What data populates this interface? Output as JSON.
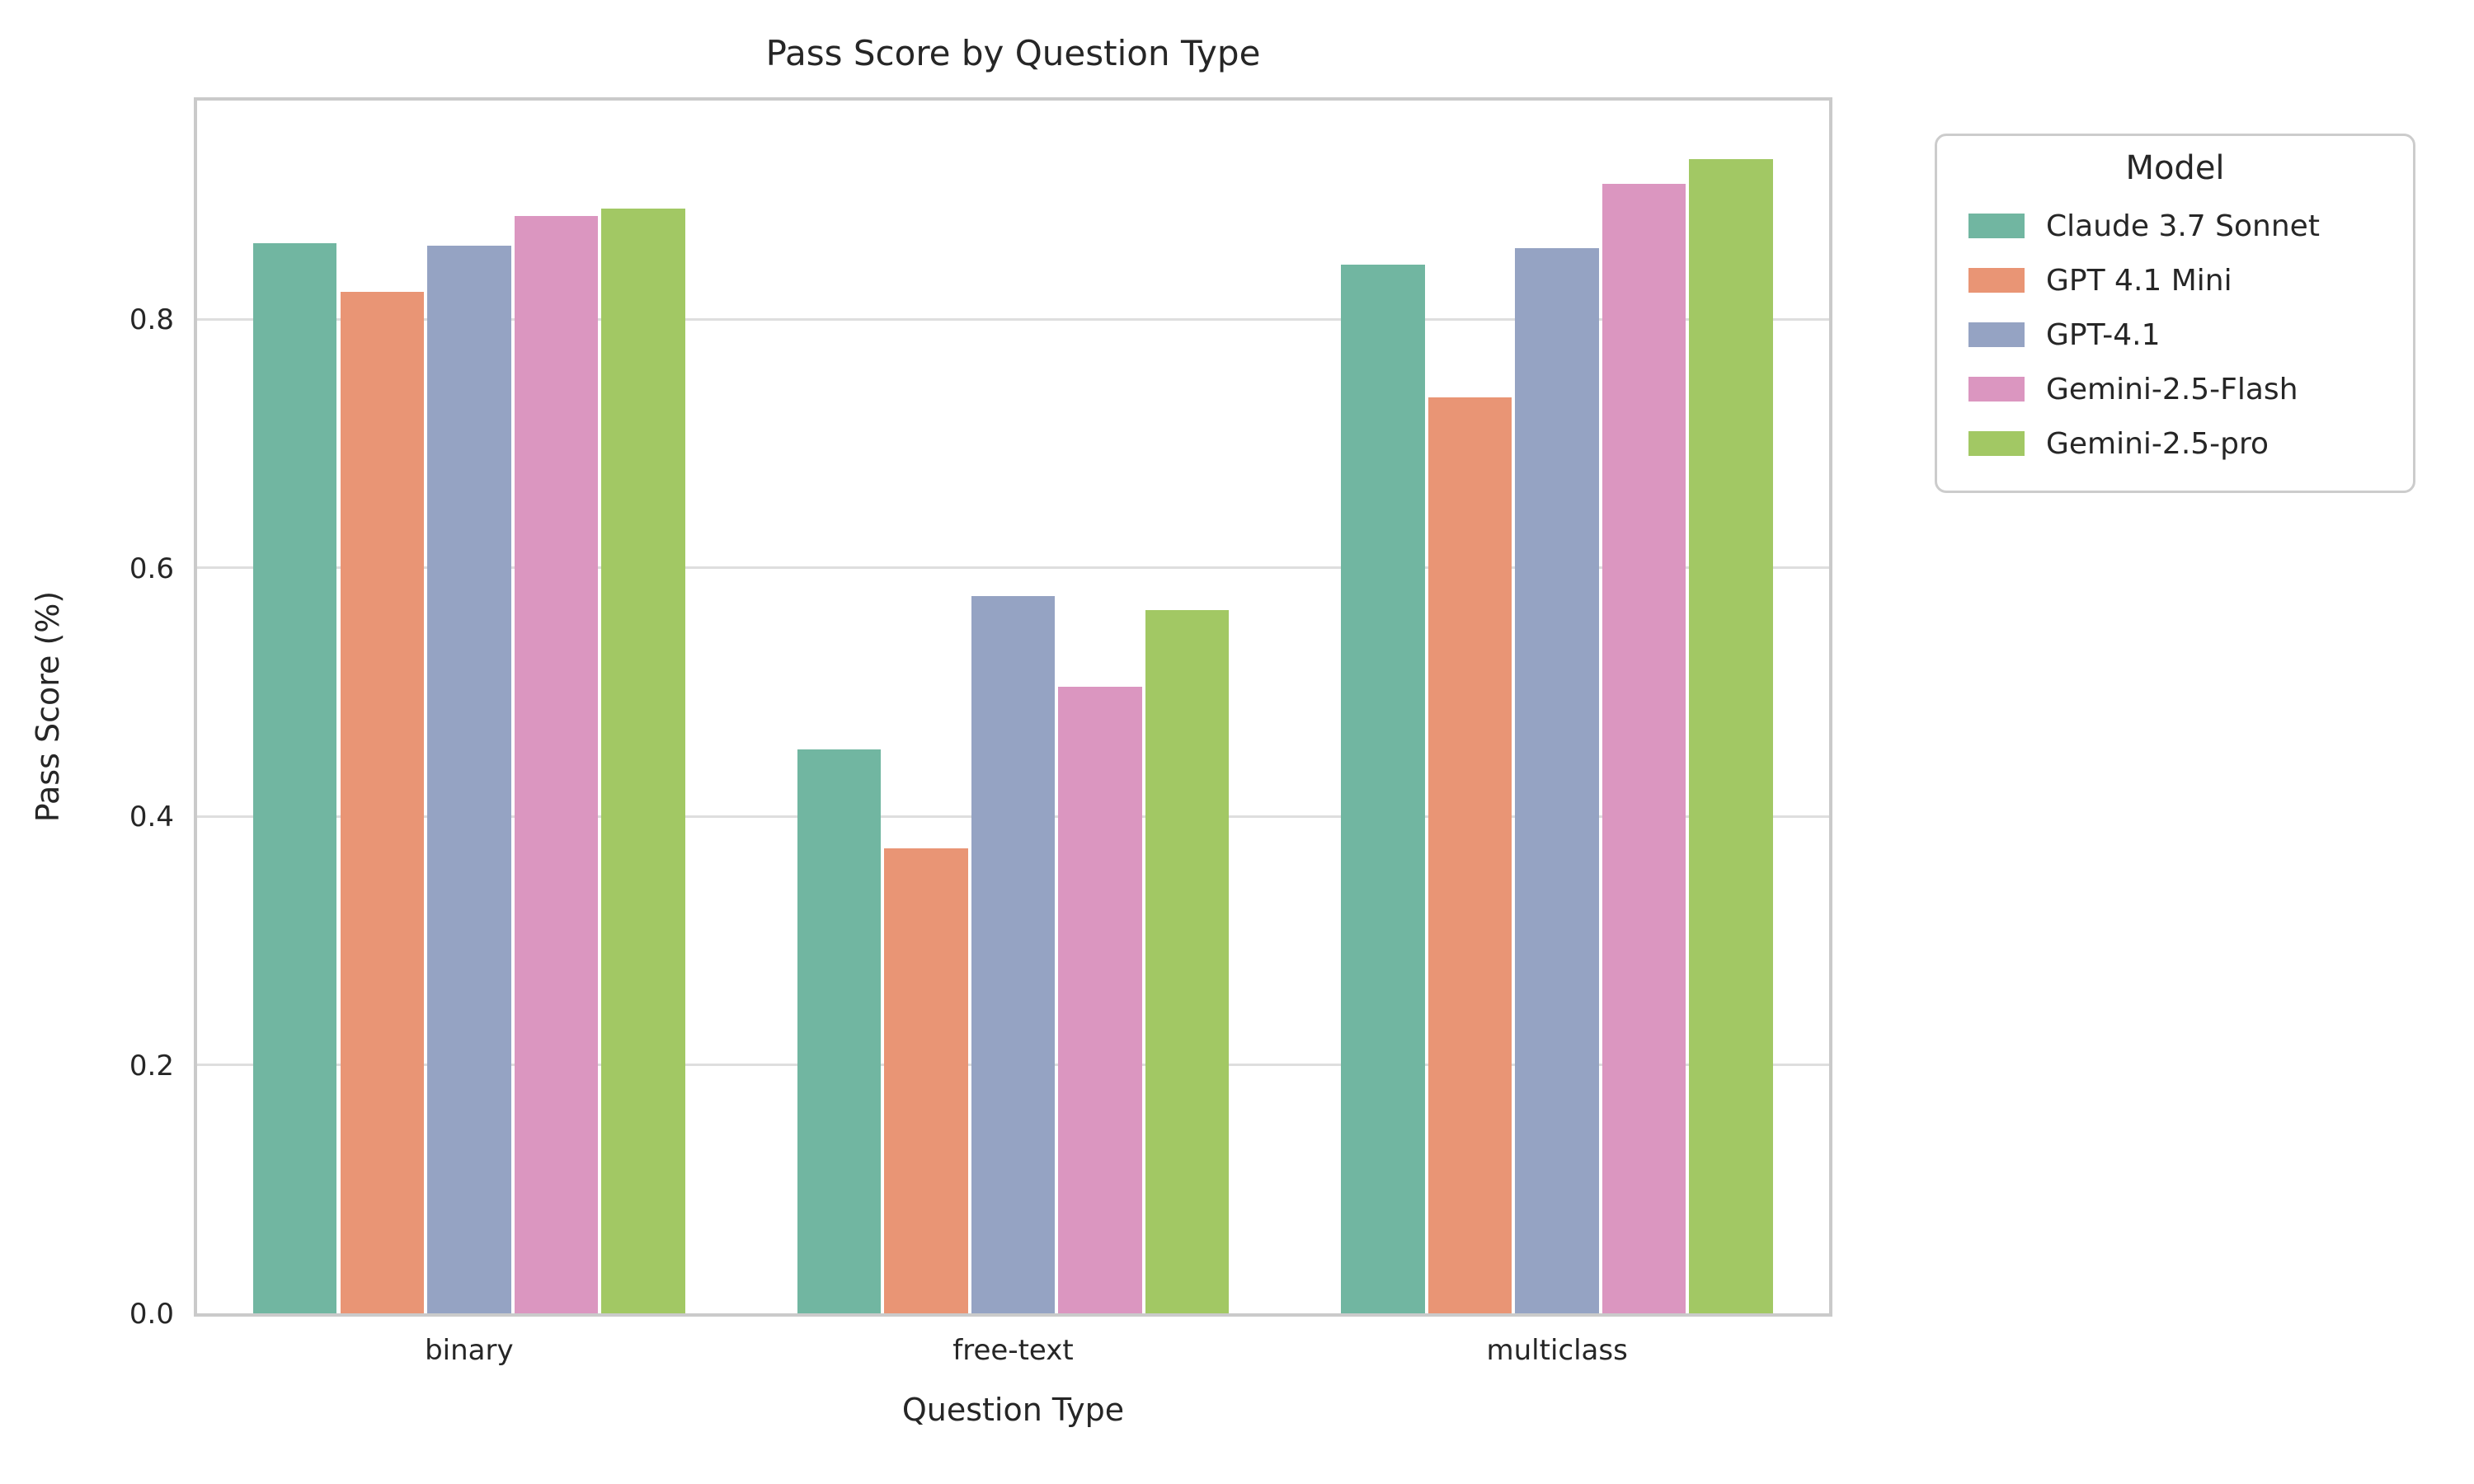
{
  "chart_data": {
    "type": "bar",
    "title": "Pass Score by Question Type",
    "xlabel": "Question Type",
    "ylabel": "Pass Score (%)",
    "categories": [
      "binary",
      "free-text",
      "multiclass"
    ],
    "series": [
      {
        "name": "Claude 3.7 Sonnet",
        "color": "#71b6a1",
        "values": [
          0.861,
          0.454,
          0.844
        ]
      },
      {
        "name": "GPT 4.1 Mini",
        "color": "#e99575",
        "values": [
          0.822,
          0.374,
          0.737
        ]
      },
      {
        "name": "GPT-4.1",
        "color": "#95a3c3",
        "values": [
          0.859,
          0.577,
          0.857
        ]
      },
      {
        "name": "Gemini-2.5-Flash",
        "color": "#db96c0",
        "values": [
          0.883,
          0.504,
          0.909
        ]
      },
      {
        "name": "Gemini-2.5-pro",
        "color": "#a2c864",
        "values": [
          0.889,
          0.566,
          0.929
        ]
      }
    ],
    "y_ticks": [
      0.0,
      0.2,
      0.4,
      0.6,
      0.8
    ],
    "y_tick_labels": [
      "0.0",
      "0.2",
      "0.4",
      "0.6",
      "0.8"
    ],
    "ylim": [
      0,
      0.976
    ],
    "grid": "horizontal",
    "legend": {
      "title": "Model",
      "position": "outside-right"
    }
  },
  "style": {
    "background": "#ffffff",
    "spine_color": "#cacaca",
    "grid_color": "#dedede",
    "text_color": "#262626",
    "legend_border_color": "#cccccc"
  }
}
